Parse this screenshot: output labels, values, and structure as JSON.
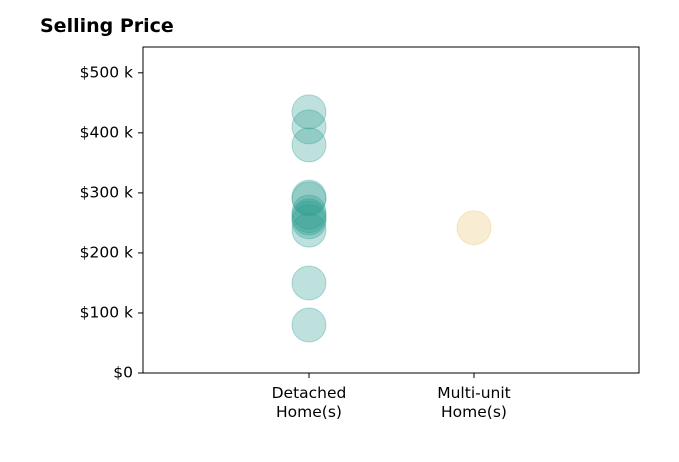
{
  "chart_data": {
    "type": "scatter",
    "title": "Selling Price",
    "xlabel": "",
    "ylabel": "",
    "categories": [
      [
        "Detached",
        "Home(s)"
      ],
      [
        "Multi-unit",
        "Home(s)"
      ]
    ],
    "y_ticks": [
      "$0",
      "$100 k",
      "$200 k",
      "$300 k",
      "$400 k",
      "$500 k"
    ],
    "y_tick_values": [
      0,
      100000,
      200000,
      300000,
      400000,
      500000
    ],
    "ylim": [
      0,
      543000
    ],
    "grid": false,
    "series": [
      {
        "category": 0,
        "color": "#2a9d8f",
        "values": [
          435000,
          410000,
          380000,
          293000,
          290000,
          268000,
          262000,
          258000,
          252000,
          238000,
          150000,
          80000
        ]
      },
      {
        "category": 1,
        "color": "#e9c46a",
        "values": [
          242000
        ]
      }
    ]
  }
}
